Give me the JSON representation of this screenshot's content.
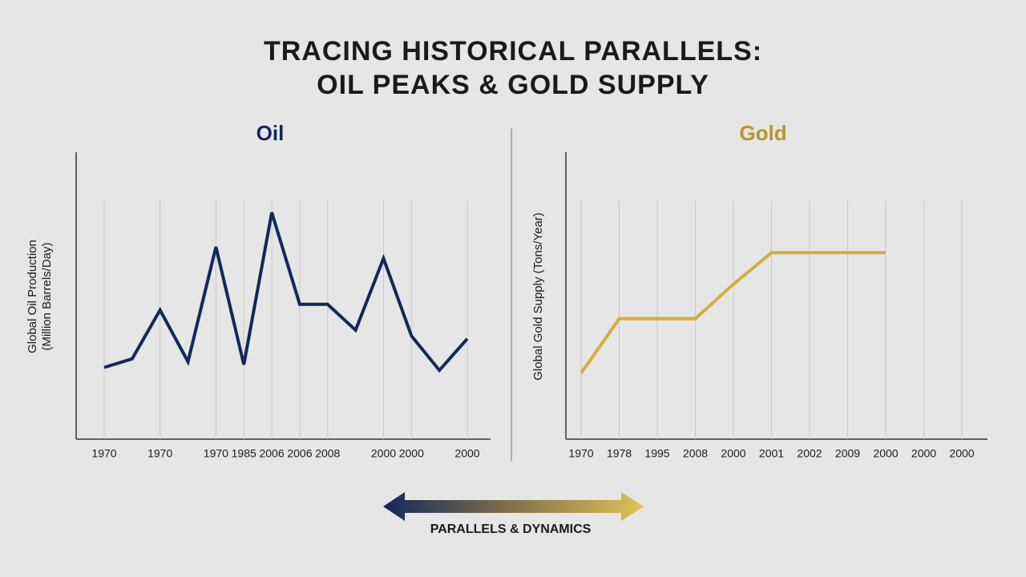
{
  "title_lines": [
    "TRACING HISTORICAL PARALLELS:",
    "OIL PEAKS & GOLD SUPPLY"
  ],
  "arrow_label": "PARALLELS & DYNAMICS",
  "chart_data": [
    {
      "type": "line",
      "title": "Oil",
      "title_color": "#13285a",
      "y_label_lines": [
        "Global Oil Production",
        "(Million Barrels/Day)"
      ],
      "categories": [
        "1970",
        null,
        "1970",
        null,
        "1970",
        "1985",
        "2006",
        "2006",
        "2008",
        null,
        "2000",
        "2000",
        null,
        "2000"
      ],
      "values": [
        25,
        28,
        45,
        27,
        67,
        26,
        79,
        47,
        47,
        38,
        63,
        36,
        24,
        35
      ],
      "color": "#13285a",
      "ylim": [
        0,
        100
      ],
      "grid": true
    },
    {
      "type": "line",
      "title": "Gold",
      "title_color": "#b8952e",
      "y_label_lines": [
        "Global Gold Supply (Tons/Year)"
      ],
      "categories": [
        "1970",
        "1978",
        "1995",
        "2008",
        "2000",
        "2001",
        "2002",
        "2009",
        "2000",
        "2000",
        "2000"
      ],
      "values": [
        23,
        42,
        42,
        42,
        54,
        65,
        65,
        65,
        65,
        null,
        null
      ],
      "color": "#d4ad3c",
      "ylim": [
        0,
        100
      ],
      "grid": true
    }
  ]
}
